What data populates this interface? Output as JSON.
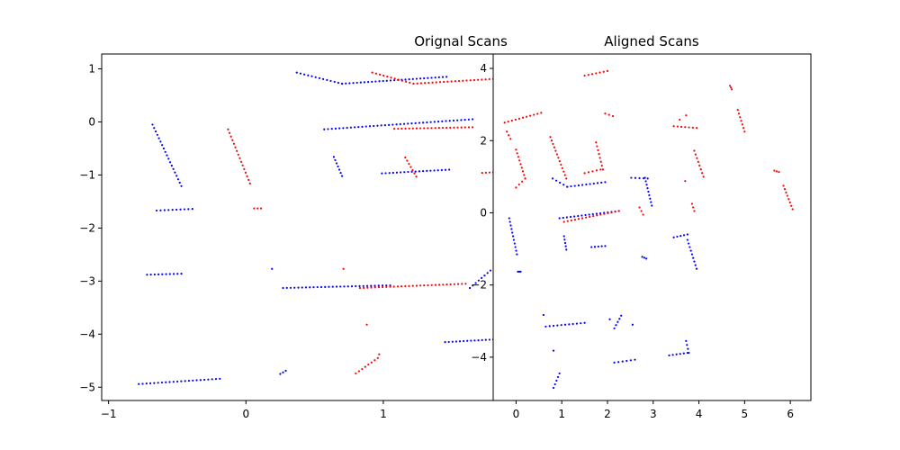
{
  "chart_data": [
    {
      "type": "scatter",
      "title": "Orignal Scans",
      "xlim": [
        -1.05,
        1.8
      ],
      "ylim": [
        -5.25,
        1.28
      ],
      "xticks": [
        -1,
        0,
        1
      ],
      "yticks": [
        -5,
        -4,
        -3,
        -2,
        -1,
        0,
        1
      ],
      "xtick_labels": [
        "−1",
        "0",
        "1"
      ],
      "ytick_labels": [
        "−5",
        "−4",
        "−3",
        "−2",
        "−1",
        "0",
        "1"
      ],
      "grid": false,
      "series": [
        {
          "color": "#0000ff",
          "segments": [
            [
              [
                0.37,
                0.93
              ],
              [
                0.7,
                0.72
              ]
            ],
            [
              [
                0.7,
                0.72
              ],
              [
                1.46,
                0.85
              ]
            ],
            [
              [
                0.57,
                -0.14
              ],
              [
                1.65,
                0.05
              ]
            ],
            [
              [
                -0.68,
                -0.05
              ],
              [
                -0.47,
                -1.21
              ]
            ],
            [
              [
                -0.65,
                -1.67
              ],
              [
                -0.39,
                -1.64
              ]
            ],
            [
              [
                0.64,
                -0.66
              ],
              [
                0.7,
                -1.02
              ]
            ],
            [
              [
                0.99,
                -0.97
              ],
              [
                1.48,
                -0.9
              ]
            ],
            [
              [
                -0.72,
                -2.88
              ],
              [
                -0.47,
                -2.86
              ]
            ],
            [
              [
                0.27,
                -3.13
              ],
              [
                1.05,
                -3.08
              ]
            ],
            [
              [
                1.63,
                -3.13
              ],
              [
                1.78,
                -2.8
              ]
            ],
            [
              [
                1.45,
                -4.15
              ],
              [
                1.8,
                -4.1
              ]
            ],
            [
              [
                -0.78,
                -4.94
              ],
              [
                -0.19,
                -4.84
              ]
            ],
            [
              [
                0.25,
                -4.75
              ],
              [
                0.29,
                -4.69
              ]
            ]
          ],
          "points": [
            [
              0.19,
              -2.77
            ]
          ]
        },
        {
          "color": "#ff0000",
          "segments": [
            [
              [
                0.92,
                0.93
              ],
              [
                1.22,
                0.72
              ]
            ],
            [
              [
                1.22,
                0.72
              ],
              [
                1.8,
                0.81
              ]
            ],
            [
              [
                -0.13,
                -0.14
              ],
              [
                0.03,
                -1.16
              ]
            ],
            [
              [
                0.06,
                -1.63
              ],
              [
                0.11,
                -1.63
              ]
            ],
            [
              [
                1.08,
                -0.13
              ],
              [
                1.65,
                -0.1
              ]
            ],
            [
              [
                1.16,
                -0.67
              ],
              [
                1.24,
                -1.03
              ]
            ],
            [
              [
                1.72,
                -0.96
              ],
              [
                1.8,
                -0.95
              ]
            ],
            [
              [
                0.83,
                -3.13
              ],
              [
                1.6,
                -3.05
              ]
            ],
            [
              [
                0.8,
                -4.74
              ],
              [
                0.96,
                -4.45
              ]
            ]
          ],
          "points": [
            [
              0.71,
              -2.77
            ],
            [
              0.88,
              -3.82
            ],
            [
              0.97,
              -4.38
            ]
          ]
        }
      ]
    },
    {
      "type": "scatter",
      "title": "Aligned Scans",
      "xlim": [
        -0.5,
        6.45
      ],
      "ylim": [
        -5.2,
        4.4
      ],
      "xticks": [
        0,
        1,
        2,
        3,
        4,
        5,
        6
      ],
      "yticks": [
        -4,
        -2,
        0,
        2,
        4
      ],
      "xtick_labels": [
        "0",
        "1",
        "2",
        "3",
        "4",
        "5",
        "6"
      ],
      "ytick_labels": [
        "−4",
        "−2",
        "0",
        "2",
        "4"
      ],
      "grid": false,
      "series": [
        {
          "color": "#0000ff",
          "segments": [
            [
              [
                -0.15,
                -0.15
              ],
              [
                0.02,
                -1.15
              ]
            ],
            [
              [
                0.04,
                -1.63
              ],
              [
                0.1,
                -1.63
              ]
            ],
            [
              [
                0.8,
                0.95
              ],
              [
                1.12,
                0.72
              ]
            ],
            [
              [
                1.12,
                0.72
              ],
              [
                1.95,
                0.85
              ]
            ],
            [
              [
                0.95,
                -0.15
              ],
              [
                2.25,
                0.05
              ]
            ],
            [
              [
                1.05,
                -0.65
              ],
              [
                1.1,
                -1.02
              ]
            ],
            [
              [
                1.65,
                -0.95
              ],
              [
                1.95,
                -0.92
              ]
            ],
            [
              [
                2.52,
                0.97
              ],
              [
                2.88,
                0.95
              ]
            ],
            [
              [
                2.82,
                0.97
              ],
              [
                2.97,
                0.2
              ]
            ],
            [
              [
                2.76,
                -1.22
              ],
              [
                2.85,
                -1.27
              ]
            ],
            [
              [
                0.65,
                -3.15
              ],
              [
                1.5,
                -3.05
              ]
            ],
            [
              [
                2.15,
                -3.2
              ],
              [
                2.3,
                -2.85
              ]
            ],
            [
              [
                2.15,
                -4.15
              ],
              [
                2.6,
                -4.07
              ]
            ],
            [
              [
                3.35,
                -3.95
              ],
              [
                3.75,
                -3.88
              ]
            ],
            [
              [
                3.72,
                -3.55
              ],
              [
                3.78,
                -3.88
              ]
            ],
            [
              [
                0.82,
                -4.85
              ],
              [
                0.95,
                -4.45
              ]
            ],
            [
              [
                3.45,
                -0.68
              ],
              [
                3.75,
                -0.6
              ]
            ],
            [
              [
                3.75,
                -0.75
              ],
              [
                3.95,
                -1.55
              ]
            ]
          ],
          "points": [
            [
              0.6,
              -2.83
            ],
            [
              0.82,
              -3.82
            ],
            [
              2.55,
              -3.1
            ],
            [
              2.05,
              -2.95
            ]
          ]
        },
        {
          "color": "#ff0000",
          "segments": [
            [
              [
                -0.25,
                2.5
              ],
              [
                0.55,
                2.77
              ]
            ],
            [
              [
                -0.2,
                2.25
              ],
              [
                -0.12,
                2.05
              ]
            ],
            [
              [
                0.0,
                1.75
              ],
              [
                0.2,
                0.95
              ]
            ],
            [
              [
                0.0,
                0.7
              ],
              [
                0.2,
                0.95
              ]
            ],
            [
              [
                0.75,
                2.1
              ],
              [
                1.1,
                0.95
              ]
            ],
            [
              [
                1.5,
                3.8
              ],
              [
                2.0,
                3.93
              ]
            ],
            [
              [
                1.95,
                2.75
              ],
              [
                2.12,
                2.68
              ]
            ],
            [
              [
                1.75,
                1.95
              ],
              [
                1.9,
                1.2
              ]
            ],
            [
              [
                1.5,
                1.1
              ],
              [
                1.85,
                1.2
              ]
            ],
            [
              [
                1.05,
                -0.25
              ],
              [
                2.25,
                0.05
              ]
            ],
            [
              [
                2.7,
                0.15
              ],
              [
                2.78,
                -0.05
              ]
            ],
            [
              [
                3.45,
                2.4
              ],
              [
                3.95,
                2.35
              ]
            ],
            [
              [
                3.9,
                1.72
              ],
              [
                4.1,
                1.0
              ]
            ],
            [
              [
                3.85,
                0.25
              ],
              [
                3.9,
                0.05
              ]
            ],
            [
              [
                4.68,
                3.52
              ],
              [
                4.72,
                3.42
              ]
            ],
            [
              [
                4.85,
                2.85
              ],
              [
                5.0,
                2.25
              ]
            ],
            [
              [
                5.65,
                1.17
              ],
              [
                5.75,
                1.13
              ]
            ],
            [
              [
                5.85,
                0.75
              ],
              [
                6.05,
                0.1
              ]
            ]
          ],
          "points": [
            [
              3.72,
              2.7
            ],
            [
              3.58,
              2.58
            ],
            [
              3.7,
              0.88
            ]
          ]
        }
      ]
    }
  ]
}
